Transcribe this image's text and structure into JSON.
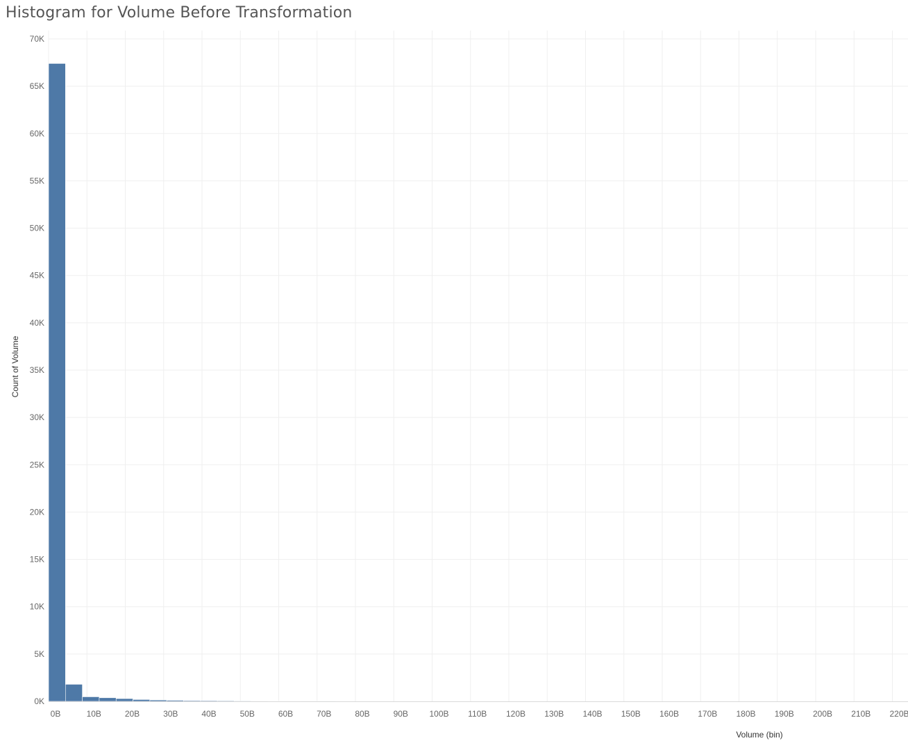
{
  "chart_data": {
    "type": "bar",
    "title": "Histogram for Volume Before Transformation",
    "xlabel": "Volume (bin)",
    "ylabel": "Count of Volume",
    "ylim": [
      0,
      70000
    ],
    "xlim": [
      0,
      220
    ],
    "x_unit": "B",
    "y_ticks": [
      "0K",
      "5K",
      "10K",
      "15K",
      "20K",
      "25K",
      "30K",
      "35K",
      "40K",
      "45K",
      "50K",
      "55K",
      "60K",
      "65K",
      "70K"
    ],
    "x_ticks": [
      "0B",
      "10B",
      "20B",
      "30B",
      "40B",
      "50B",
      "60B",
      "70B",
      "80B",
      "90B",
      "100B",
      "110B",
      "120B",
      "130B",
      "140B",
      "150B",
      "160B",
      "170B",
      "180B",
      "190B",
      "200B",
      "210B",
      "220B"
    ],
    "bin_width": 4.4,
    "bins_start": [
      0,
      4.4,
      8.8,
      13.2,
      17.6,
      22.0,
      26.4,
      30.8,
      35.2,
      39.6,
      44.0,
      48.4,
      52.8,
      57.2,
      61.6,
      66.0,
      70.4
    ],
    "values": [
      67400,
      1800,
      480,
      380,
      290,
      190,
      140,
      110,
      80,
      60,
      40,
      30,
      25,
      20,
      15,
      12,
      10
    ],
    "bar_color": "#4e79a7",
    "grid": true
  }
}
